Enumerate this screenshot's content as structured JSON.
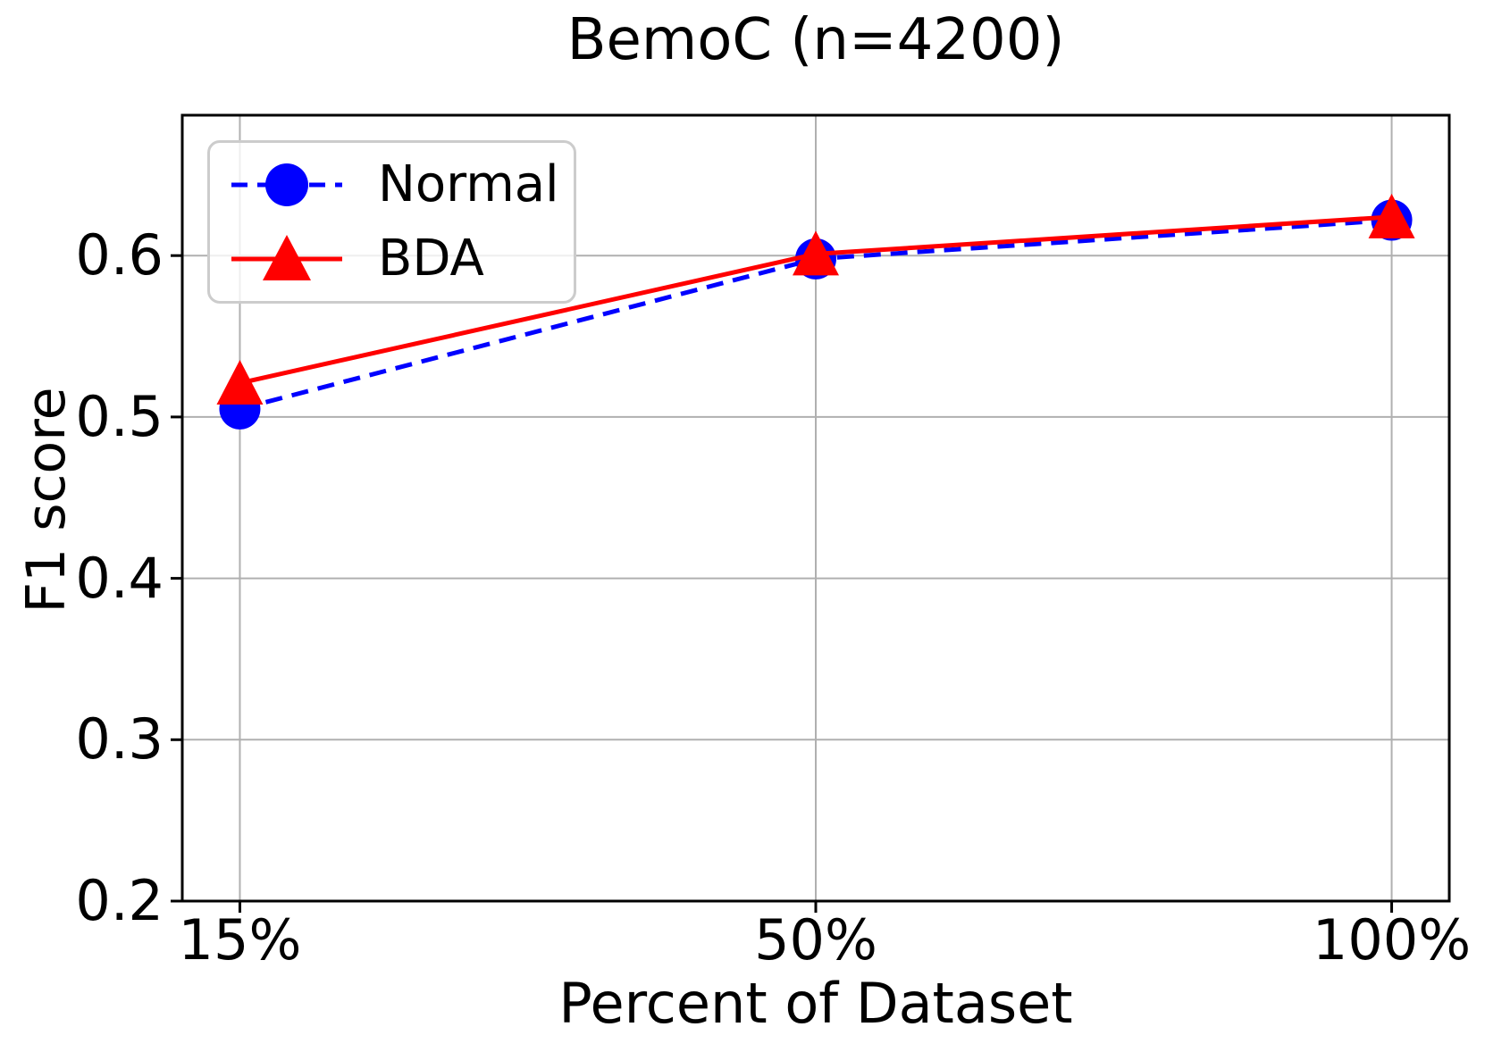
{
  "chart_data": {
    "type": "line",
    "title": "BemoC (n=4200)",
    "xlabel": "Percent of Dataset",
    "ylabel": "F1 score",
    "categories": [
      "15%",
      "50%",
      "100%"
    ],
    "x_tick_labels": [
      "15%",
      "50%",
      "100%"
    ],
    "y_ticks": [
      0.2,
      0.3,
      0.4,
      0.5,
      0.6
    ],
    "y_tick_labels": [
      "0.2",
      "0.3",
      "0.4",
      "0.5",
      "0.6"
    ],
    "ylim": [
      0.2,
      0.687
    ],
    "xlim_units": [
      -0.1,
      2.1
    ],
    "grid": true,
    "series": [
      {
        "name": "Normal",
        "color": "#0000ff",
        "linestyle": "dashed",
        "marker": "circle",
        "values": [
          0.505,
          0.598,
          0.622
        ]
      },
      {
        "name": "BDA",
        "color": "#ff0000",
        "linestyle": "solid",
        "marker": "triangle-up",
        "values": [
          0.521,
          0.601,
          0.624
        ]
      }
    ],
    "legend": {
      "position": "upper left",
      "labels": [
        "Normal",
        "BDA"
      ]
    },
    "colors": {
      "grid": "#b0b0b0",
      "spine": "#000000",
      "text": "#000000",
      "legend_border": "#cccccc"
    }
  }
}
